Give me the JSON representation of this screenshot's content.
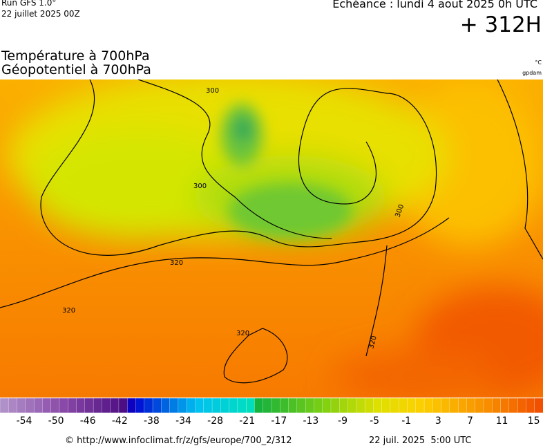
{
  "header": {
    "run": "Run GFS 1.0°",
    "run_date": "22 juillet 2025 00Z",
    "valid": "Echéance : lundi 4 aout 2025 0h UTC",
    "lead": "+ 312H",
    "title_1": "Température à 700hPa",
    "title_2": "Géopotentiel à 700hPa",
    "unit_temp": "°C",
    "unit_geo": "gpdam"
  },
  "map": {
    "contour_labels": [
      "300",
      "300",
      "300",
      "320",
      "320",
      "320",
      "320"
    ]
  },
  "colorbar": {
    "ticks": [
      "-54",
      "-50",
      "-46",
      "-42",
      "-38",
      "-34",
      "-28",
      "-21",
      "-17",
      "-13",
      "-9",
      "-5",
      "-1",
      "3",
      "7",
      "11",
      "15"
    ]
  },
  "footer": {
    "source": "© http://www.infoclimat.fr/z/gfs/europe/700_2/312",
    "issued": "22 juil. 2025  5:00 UTC"
  }
}
